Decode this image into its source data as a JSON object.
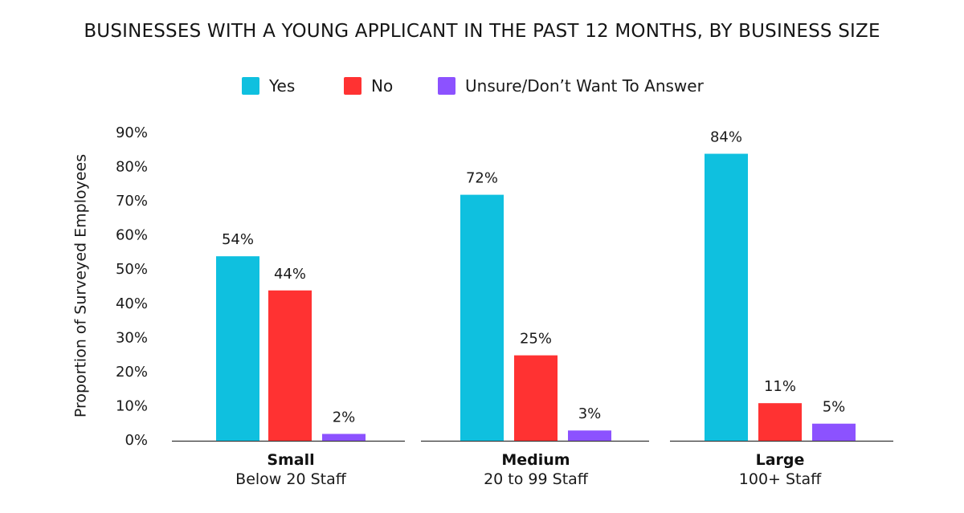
{
  "chart_data": {
    "type": "bar",
    "title": "BUSINESSES WITH A YOUNG APPLICANT IN THE PAST 12 MONTHS, BY BUSINESS SIZE",
    "ylabel": "Proportion of Surveyed Employees",
    "ylim": [
      0,
      90
    ],
    "yticks": [
      "0%",
      "10%",
      "20%",
      "30%",
      "40%",
      "50%",
      "60%",
      "70%",
      "80%",
      "90%"
    ],
    "grid": false,
    "legend_position": "top-center",
    "categories": [
      {
        "name": "Small",
        "sub": "Below 20 Staff"
      },
      {
        "name": "Medium",
        "sub": "20 to 99 Staff"
      },
      {
        "name": "Large",
        "sub": "100+ Staff"
      }
    ],
    "series": [
      {
        "name": "Yes",
        "color": "#0fc0df",
        "values": [
          54,
          72,
          84
        ],
        "labels": [
          "54%",
          "72%",
          "84%"
        ]
      },
      {
        "name": "No",
        "color": "#ff3232",
        "values": [
          44,
          25,
          11
        ],
        "labels": [
          "44%",
          "25%",
          "11%"
        ]
      },
      {
        "name": "Unsure/Don’t Want To Answer",
        "color": "#8c52ff",
        "values": [
          2,
          3,
          5
        ],
        "labels": [
          "2%",
          "3%",
          "5%"
        ]
      }
    ]
  }
}
